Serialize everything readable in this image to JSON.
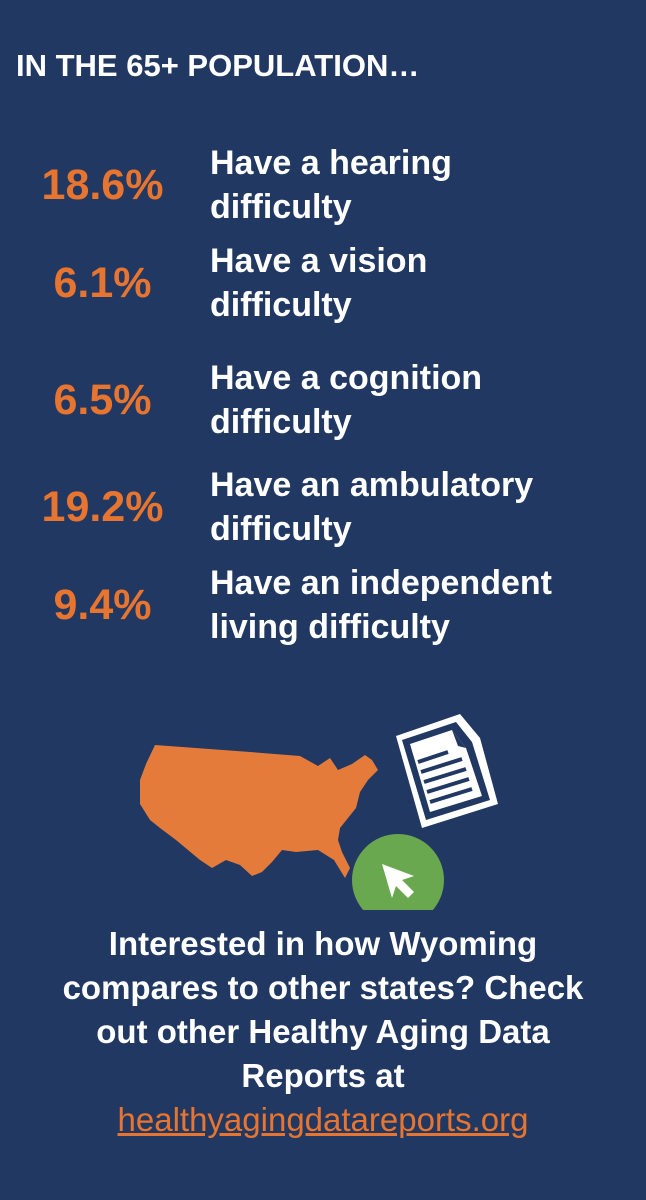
{
  "header": {
    "title": "IN THE 65+ POPULATION…"
  },
  "items": [
    {
      "value": "18.6%",
      "label": [
        "Have a hearing",
        "difficulty"
      ]
    },
    {
      "value": "6.1%",
      "label": [
        "Have a vision",
        "difficulty"
      ]
    },
    {
      "value": "6.5%",
      "label": [
        "Have a cognition",
        "difficulty"
      ]
    },
    {
      "value": "19.2%",
      "label": [
        "Have an ambulatory",
        "difficulty"
      ]
    },
    {
      "value": "9.4%",
      "label": [
        "Have an independent",
        "living difficulty"
      ]
    }
  ],
  "footer": {
    "lines": [
      "Interested in how Wyoming",
      "compares to other states? Check",
      "out other Healthy Aging Data",
      "Reports at"
    ],
    "link": "healthyagingdatareports.org"
  }
}
